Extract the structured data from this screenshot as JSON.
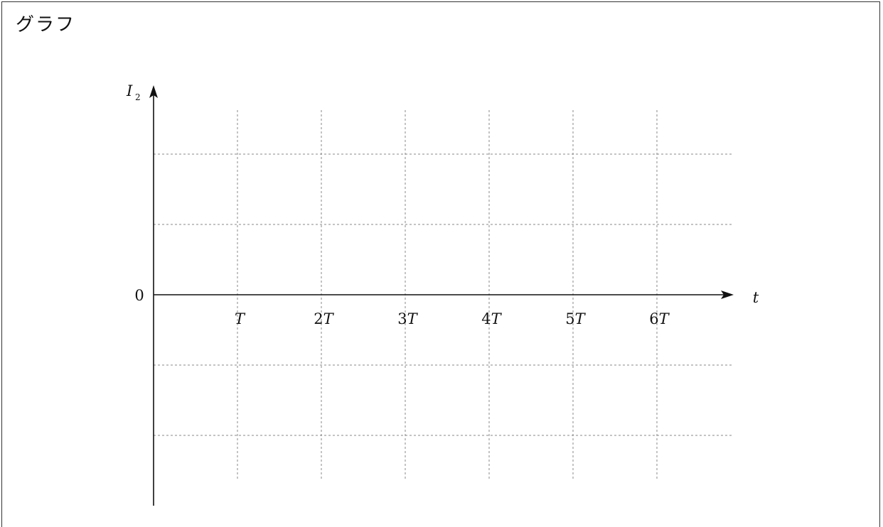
{
  "page": {
    "title": "グラフ"
  },
  "chart_data": {
    "type": "line",
    "title": "",
    "xlabel": "t",
    "ylabel_main": "I",
    "ylabel_sub": "2",
    "origin_label": "0",
    "x_ticks": [
      {
        "value": 1,
        "coef": "",
        "unit": "T"
      },
      {
        "value": 2,
        "coef": "2",
        "unit": "T"
      },
      {
        "value": 3,
        "coef": "3",
        "unit": "T"
      },
      {
        "value": 4,
        "coef": "4",
        "unit": "T"
      },
      {
        "value": 5,
        "coef": "5",
        "unit": "T"
      },
      {
        "value": 6,
        "coef": "6",
        "unit": "T"
      }
    ],
    "y_grid_levels": [
      2,
      1,
      -1,
      -2
    ],
    "xlim": [
      0,
      7
    ],
    "ylim": [
      -3,
      3
    ],
    "grid": true,
    "series": []
  }
}
